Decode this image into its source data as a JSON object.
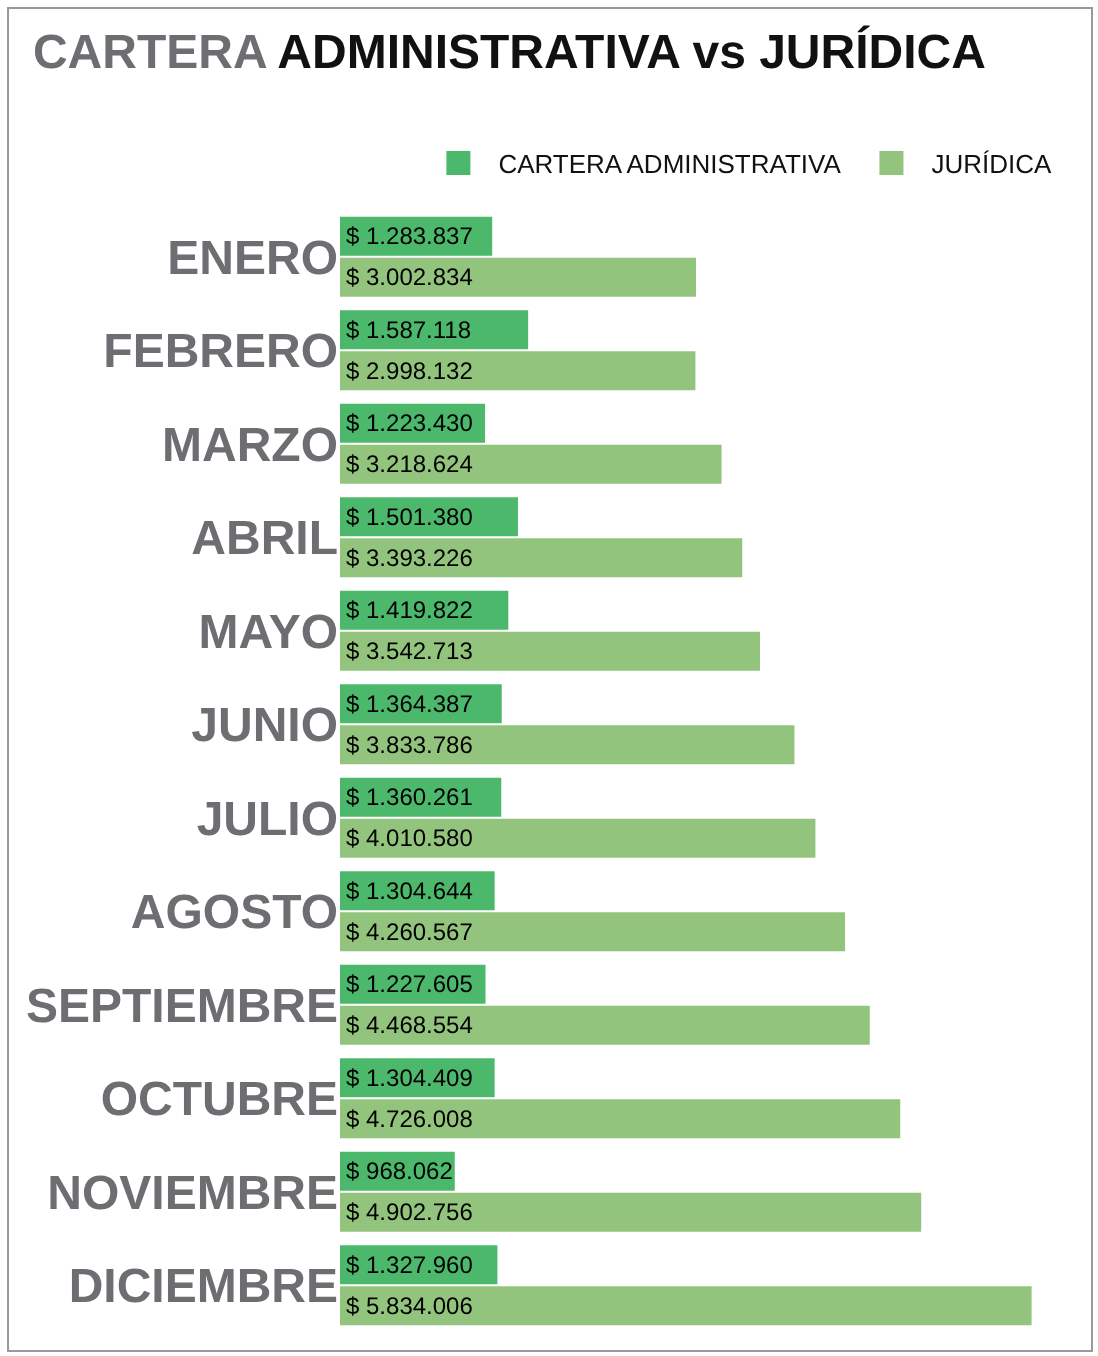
{
  "chart_data": {
    "type": "bar",
    "orientation": "horizontal",
    "title": "CARTERA ADMINISTRATIVA vs JURÍDICA",
    "legend": "top",
    "categories": [
      "ENERO",
      "FEBRERO",
      "MARZO",
      "ABRIL",
      "MAYO",
      "JUNIO",
      "JULIO",
      "AGOSTO",
      "SEPTIEMBRE",
      "OCTUBRE",
      "NOVIEMBRE",
      "DICIEMBRE"
    ],
    "series": [
      {
        "name": "CARTERA ADMINISTRATIVA",
        "color": "#4cb86b",
        "values": [
          1283837,
          1587118,
          1223430,
          1501380,
          1419822,
          1364387,
          1360261,
          1304644,
          1227605,
          1304409,
          968062,
          1327960
        ],
        "value_labels": [
          "$ 1.283.837",
          "$ 1.587.118",
          "$ 1.223.430",
          "$ 1.501.380",
          "$ 1.419.822",
          "$ 1.364.387",
          "$ 1.360.261",
          "$ 1.304.644",
          "$ 1.227.605",
          "$ 1.304.409",
          "$ 968.062",
          "$ 1.327.960"
        ]
      },
      {
        "name": "JURÍDICA",
        "color": "#93c47d",
        "values": [
          3002834,
          2998132,
          3218624,
          3393226,
          3542713,
          3833786,
          4010580,
          4260567,
          4468554,
          4726008,
          4902756,
          5834006
        ],
        "value_labels": [
          "$ 3.002.834",
          "$ 2.998.132",
          "$ 3.218.624",
          "$ 3.393.226",
          "$ 3.542.713",
          "$ 3.833.786",
          "$ 4.010.580",
          "$ 4.260.567",
          "$ 4.468.554",
          "$ 4.726.008",
          "$ 4.902.756",
          "$ 5.834.006"
        ]
      }
    ]
  }
}
